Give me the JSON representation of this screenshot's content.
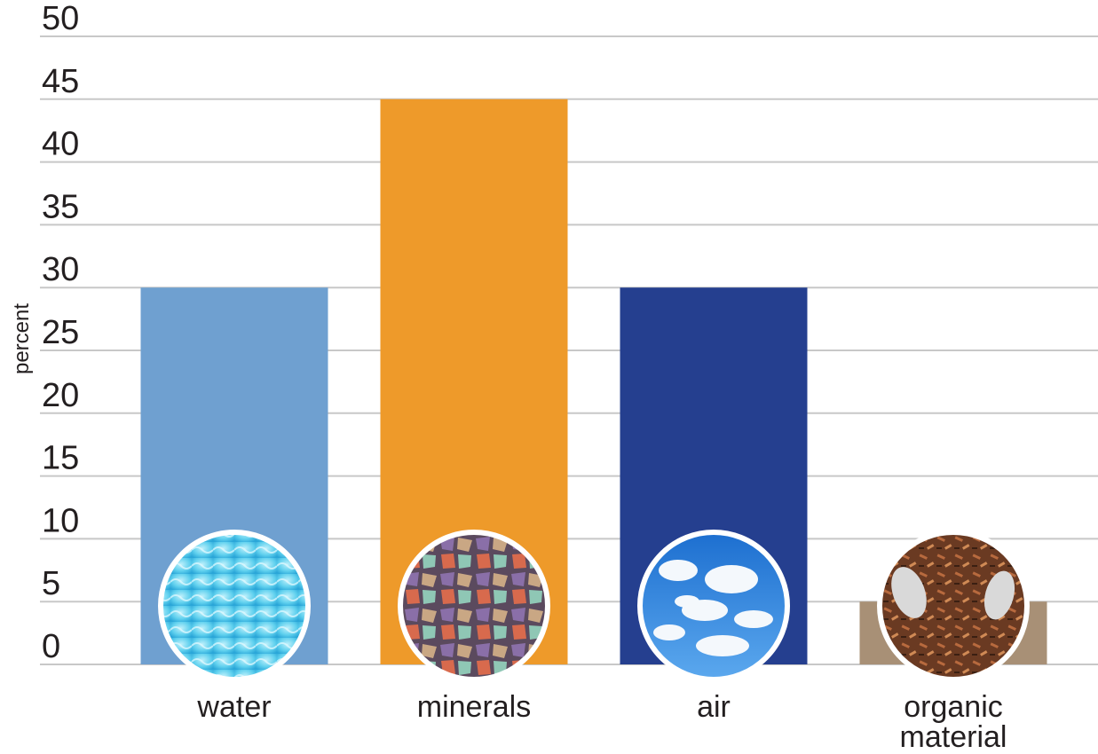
{
  "chart_data": {
    "type": "bar",
    "y_label": "percent",
    "categories": [
      "water",
      "minerals",
      "air",
      "organic material"
    ],
    "values": [
      30,
      45,
      30,
      5
    ],
    "colors": [
      "#6fa0d0",
      "#ee9a2a",
      "#253f8f",
      "#a89076"
    ],
    "ylim": [
      0,
      50
    ],
    "yticks": [
      0,
      5,
      10,
      15,
      20,
      25,
      30,
      35,
      40,
      45,
      50
    ],
    "grid": true
  }
}
